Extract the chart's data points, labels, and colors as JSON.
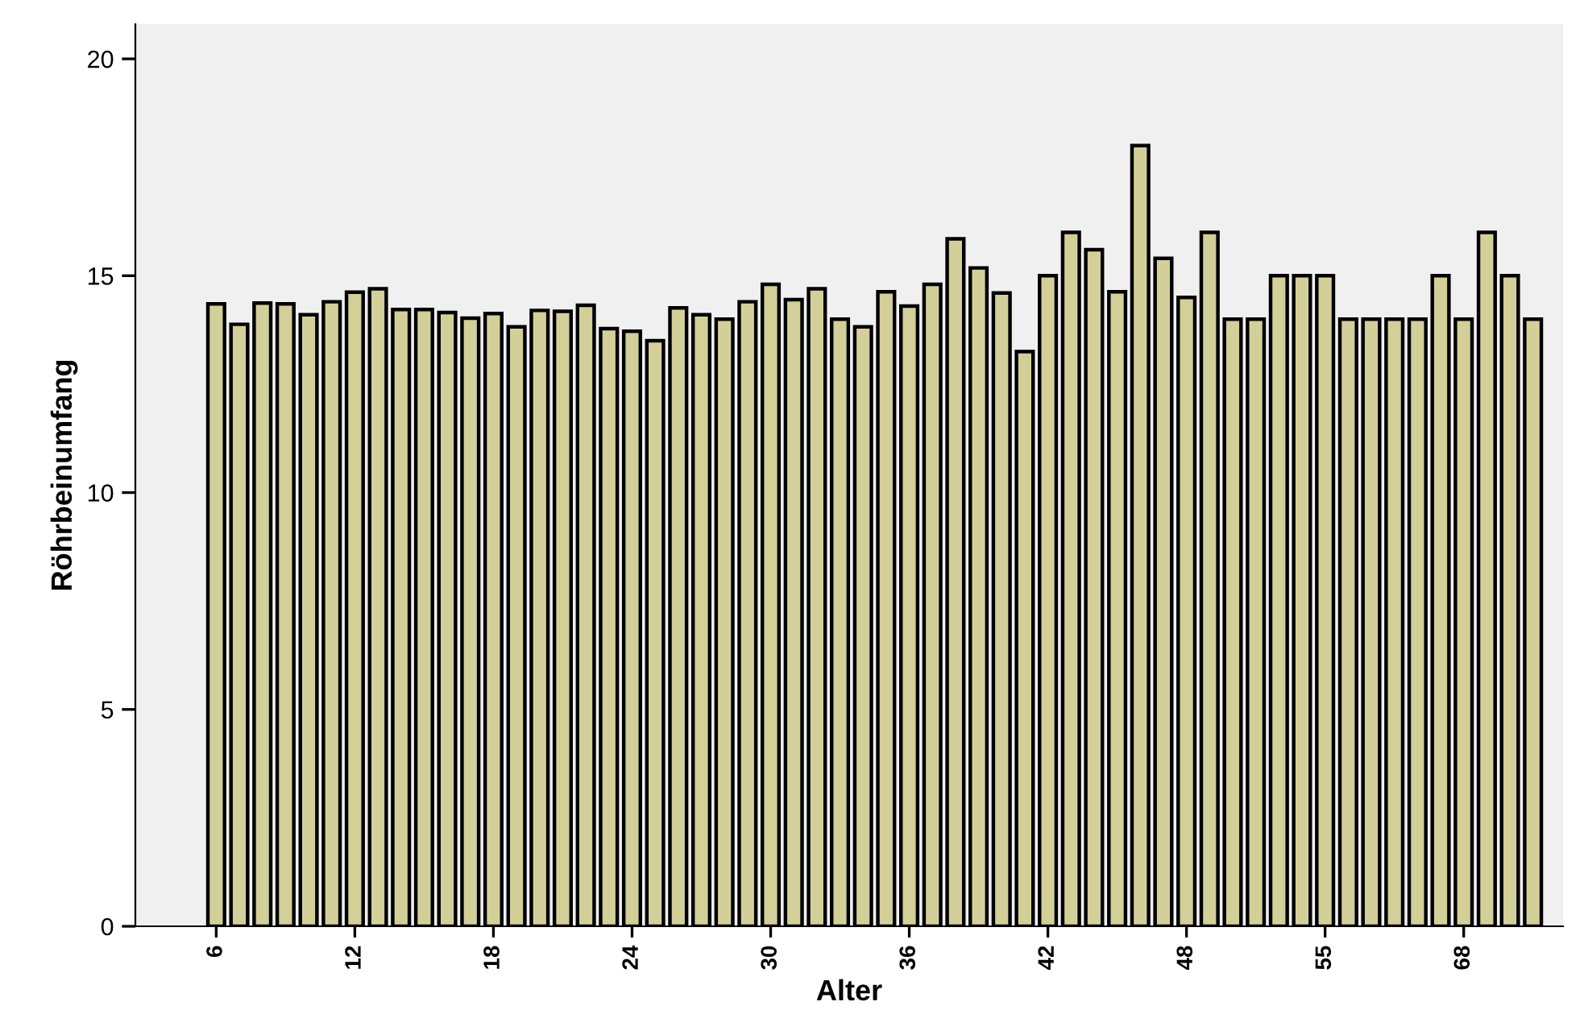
{
  "chart_data": {
    "type": "bar",
    "xlabel": "Alter",
    "ylabel": "Röhrbeinumfang",
    "categories": [
      "6",
      null,
      null,
      null,
      null,
      null,
      "12",
      null,
      null,
      null,
      null,
      null,
      "18",
      null,
      null,
      null,
      null,
      null,
      "24",
      null,
      null,
      null,
      null,
      null,
      "30",
      null,
      null,
      null,
      null,
      null,
      "36",
      null,
      null,
      null,
      null,
      null,
      "42",
      null,
      null,
      null,
      null,
      null,
      "48",
      null,
      null,
      null,
      null,
      null,
      "55",
      null,
      null,
      null,
      null,
      null,
      "68",
      null,
      null,
      null
    ],
    "values": [
      14.35,
      13.88,
      14.37,
      14.35,
      14.1,
      14.4,
      14.62,
      14.7,
      14.22,
      14.22,
      14.15,
      14.02,
      14.13,
      13.82,
      14.2,
      14.18,
      14.32,
      13.78,
      13.72,
      13.5,
      14.26,
      14.1,
      14.0,
      14.4,
      14.8,
      14.45,
      14.7,
      14.0,
      13.82,
      14.63,
      14.3,
      14.8,
      15.85,
      15.18,
      14.6,
      13.25,
      15.0,
      16.0,
      15.6,
      14.63,
      18.0,
      15.4,
      14.5,
      16.0,
      14.0,
      14.0,
      15.0,
      15.0,
      15.0,
      14.0,
      14.0,
      14.0,
      14.0,
      15.0,
      14.0,
      16.0,
      15.0,
      14.0
    ],
    "color": "#d3cf98",
    "ylim": [
      0,
      20.8
    ],
    "yticks": [
      0,
      5,
      10,
      15,
      20
    ],
    "grid": false
  }
}
